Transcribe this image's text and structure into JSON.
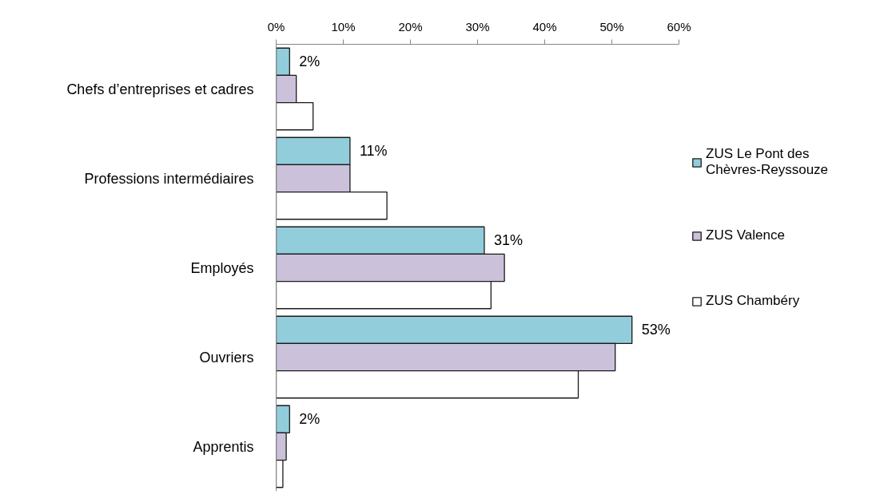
{
  "chart_data": {
    "type": "bar",
    "orientation": "horizontal",
    "categories": [
      "Chefs d’entreprises et cadres",
      "Professions intermédiaires",
      "Employés",
      "Ouvriers",
      "Apprentis"
    ],
    "series": [
      {
        "name": "ZUS Le Pont des Chèvres-Reyssouze",
        "color": "#92cddc",
        "values": [
          2,
          11,
          31,
          53,
          2
        ],
        "value_labels": [
          "2%",
          "11%",
          "31%",
          "53%",
          "2%"
        ]
      },
      {
        "name": "ZUS Valence",
        "color": "#ccc1da",
        "values": [
          3,
          11,
          34,
          50.5,
          1.5
        ]
      },
      {
        "name": "ZUS Chambéry",
        "color": "#ffffff",
        "values": [
          5.5,
          16.5,
          32,
          45,
          1
        ]
      }
    ],
    "xlim": [
      0,
      60
    ],
    "xticks": [
      {
        "value": 0,
        "label": "0%"
      },
      {
        "value": 10,
        "label": "10%"
      },
      {
        "value": 20,
        "label": "20%"
      },
      {
        "value": 30,
        "label": "30%"
      },
      {
        "value": 40,
        "label": "40%"
      },
      {
        "value": 50,
        "label": "50%"
      },
      {
        "value": 60,
        "label": "60%"
      }
    ],
    "grid": false,
    "legend": "right"
  }
}
